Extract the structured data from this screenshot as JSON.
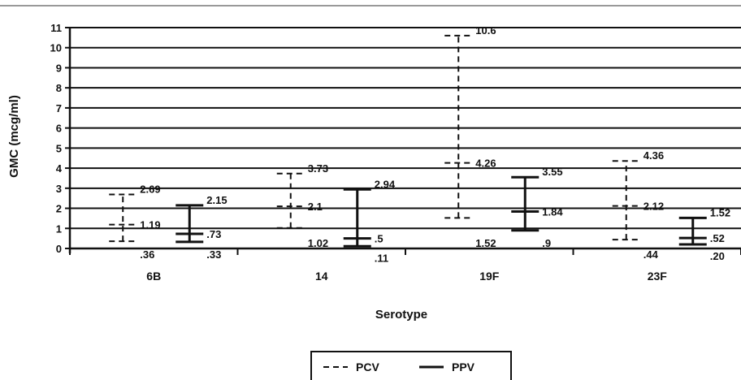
{
  "chart_data": {
    "type": "errorbar",
    "title": "",
    "xlabel": "Serotype",
    "ylabel": "GMC (mcg/ml)",
    "ylim": [
      0,
      11
    ],
    "yticks": [
      "0",
      "1",
      "2",
      "3",
      "4",
      "5",
      "6",
      "7",
      "8",
      "9",
      "10",
      "11"
    ],
    "grid": true,
    "legend_position": "bottom-center",
    "categories": [
      "6B",
      "14",
      "19F",
      "23F"
    ],
    "series": [
      {
        "name": "PCV",
        "line_style": "dashed",
        "color": "#111111",
        "points": [
          {
            "low": 0.36,
            "mid": 1.19,
            "high": 2.69,
            "low_label": ".36",
            "mid_label": "1.19",
            "high_label": "2.69"
          },
          {
            "low": 1.02,
            "mid": 2.1,
            "high": 3.73,
            "low_label": "1.02",
            "mid_label": "2.1",
            "high_label": "3.73"
          },
          {
            "low": 1.52,
            "mid": 4.26,
            "high": 10.6,
            "low_label": "1.52",
            "mid_label": "4.26",
            "high_label": "10.6"
          },
          {
            "low": 0.44,
            "mid": 2.12,
            "high": 4.36,
            "low_label": ".44",
            "mid_label": "2.12",
            "high_label": "4.36"
          }
        ]
      },
      {
        "name": "PPV",
        "line_style": "solid",
        "color": "#111111",
        "points": [
          {
            "low": 0.33,
            "mid": 0.73,
            "high": 2.15,
            "low_label": ".33",
            "mid_label": ".73",
            "high_label": "2.15"
          },
          {
            "low": 0.11,
            "mid": 0.5,
            "high": 2.94,
            "low_label": ".11",
            "mid_label": ".5",
            "high_label": "2.94"
          },
          {
            "low": 0.9,
            "mid": 1.84,
            "high": 3.55,
            "low_label": ".9",
            "mid_label": "1.84",
            "high_label": "3.55"
          },
          {
            "low": 0.2,
            "mid": 0.52,
            "high": 1.52,
            "low_label": ".20",
            "mid_label": ".52",
            "high_label": "1.52"
          }
        ]
      }
    ]
  }
}
